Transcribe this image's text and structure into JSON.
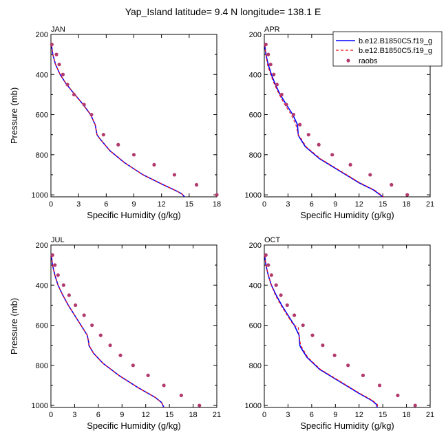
{
  "title": "Yap_Island  latitude= 9.4 N longitude= 138.1 E",
  "colors": {
    "model1": "#0000ff",
    "model2": "#ee1111",
    "obs": "#b33a6e",
    "axis": "#000000"
  },
  "legend": {
    "items": [
      {
        "label": "b.e12.B1850C5.f19_g",
        "style": "solid",
        "color": "#0000ff"
      },
      {
        "label": "b.e12.B1850C5.f19_g",
        "style": "dashed",
        "color": "#ee1111"
      },
      {
        "label": "raobs",
        "style": "marker",
        "color": "#b33a6e"
      }
    ]
  },
  "chart_data": [
    {
      "type": "line",
      "panel": "JAN",
      "xlabel": "Specific Humidity (g/kg)",
      "ylabel": "Pressure (mb)",
      "xlim": [
        0,
        18
      ],
      "ylim": [
        1010,
        200
      ],
      "xticks": [
        0,
        3,
        6,
        9,
        12,
        15,
        18
      ],
      "yticks": [
        200,
        400,
        600,
        800,
        1000
      ],
      "series": [
        {
          "name": "b.e12.B1850C5.f19_g",
          "style": "solid",
          "x": [
            0.05,
            0.2,
            0.5,
            1.0,
            1.7,
            2.6,
            3.5,
            4.3,
            4.8,
            5.0,
            5.3,
            6.4,
            8.0,
            10.0,
            12.2,
            13.6,
            14.2,
            14.5
          ],
          "y": [
            250,
            300,
            350,
            400,
            450,
            500,
            550,
            600,
            650,
            700,
            720,
            780,
            840,
            900,
            950,
            980,
            995,
            1010
          ]
        },
        {
          "name": "b.e12.B1850C5.f19_g",
          "style": "dashed",
          "x": [
            0.05,
            0.2,
            0.5,
            1.0,
            1.7,
            2.6,
            3.5,
            4.3,
            4.8,
            5.0,
            5.3,
            6.4,
            8.0,
            10.0,
            12.2,
            13.6,
            14.2,
            14.5
          ],
          "y": [
            250,
            300,
            350,
            400,
            450,
            500,
            550,
            600,
            650,
            700,
            720,
            780,
            840,
            900,
            950,
            980,
            995,
            1010
          ]
        },
        {
          "name": "raobs",
          "style": "marker",
          "x": [
            0.1,
            0.6,
            0.9,
            1.3,
            1.8,
            2.5,
            3.6,
            4.4,
            5.7,
            7.3,
            9.0,
            11.2,
            13.4,
            15.8,
            18.0
          ],
          "y": [
            250,
            300,
            350,
            400,
            450,
            500,
            550,
            600,
            700,
            750,
            800,
            850,
            900,
            950,
            1000
          ]
        }
      ]
    },
    {
      "type": "line",
      "panel": "APR",
      "xlabel": "Specific Humidity (g/kg)",
      "ylabel": "Pressure (mb)",
      "xlim": [
        0,
        21
      ],
      "ylim": [
        1010,
        200
      ],
      "xticks": [
        0,
        3,
        6,
        9,
        12,
        15,
        18,
        21
      ],
      "yticks": [
        200,
        400,
        600,
        800,
        1000
      ],
      "series": [
        {
          "name": "b.e12.B1850C5.f19_g",
          "style": "solid",
          "x": [
            0.05,
            0.2,
            0.5,
            0.9,
            1.4,
            2.0,
            2.8,
            3.6,
            4.2,
            4.3,
            4.4,
            5.2,
            7.0,
            9.5,
            12.0,
            13.8,
            14.5,
            15.0
          ],
          "y": [
            250,
            300,
            350,
            400,
            450,
            500,
            550,
            600,
            650,
            700,
            710,
            760,
            820,
            880,
            940,
            975,
            995,
            1010
          ]
        },
        {
          "name": "b.e12.B1850C5.f19_g",
          "style": "dashed",
          "x": [
            0.05,
            0.2,
            0.4,
            0.8,
            1.3,
            1.9,
            2.6,
            3.4,
            4.0,
            4.3,
            4.5,
            5.3,
            7.1,
            9.6,
            12.1,
            13.9,
            14.6,
            15.1
          ],
          "y": [
            250,
            300,
            350,
            400,
            450,
            500,
            550,
            600,
            650,
            700,
            710,
            760,
            820,
            880,
            940,
            975,
            995,
            1010
          ]
        },
        {
          "name": "raobs",
          "style": "marker",
          "x": [
            0.2,
            0.5,
            0.8,
            1.2,
            1.6,
            2.2,
            2.8,
            3.7,
            4.5,
            5.6,
            6.9,
            8.6,
            10.9,
            13.4,
            16.1,
            18.1
          ],
          "y": [
            250,
            300,
            350,
            400,
            450,
            500,
            550,
            600,
            650,
            700,
            750,
            800,
            850,
            900,
            950,
            1000
          ]
        }
      ]
    },
    {
      "type": "line",
      "panel": "JUL",
      "xlabel": "Specific Humidity (g/kg)",
      "ylabel": "Pressure (mb)",
      "xlim": [
        0,
        21
      ],
      "ylim": [
        1010,
        200
      ],
      "xticks": [
        0,
        3,
        6,
        9,
        12,
        15,
        18,
        21
      ],
      "yticks": [
        200,
        400,
        600,
        800,
        1000
      ],
      "series": [
        {
          "name": "b.e12.B1850C5.f19_g",
          "style": "solid",
          "x": [
            0.05,
            0.2,
            0.5,
            0.9,
            1.5,
            2.2,
            3.0,
            3.8,
            4.6,
            4.8,
            4.8,
            5.4,
            6.6,
            8.6,
            11.0,
            13.2,
            14.0,
            14.3
          ],
          "y": [
            250,
            300,
            350,
            400,
            450,
            500,
            550,
            600,
            650,
            690,
            700,
            740,
            790,
            850,
            910,
            960,
            985,
            1010
          ]
        },
        {
          "name": "b.e12.B1850C5.f19_g",
          "style": "dashed",
          "x": [
            0.05,
            0.2,
            0.5,
            0.9,
            1.5,
            2.2,
            3.0,
            3.8,
            4.6,
            4.8,
            4.8,
            5.4,
            6.6,
            8.6,
            11.0,
            13.2,
            14.0,
            14.3
          ],
          "y": [
            250,
            300,
            350,
            400,
            450,
            500,
            550,
            600,
            650,
            690,
            700,
            740,
            790,
            850,
            910,
            960,
            985,
            1010
          ]
        },
        {
          "name": "raobs",
          "style": "marker",
          "x": [
            0.2,
            0.5,
            0.9,
            1.6,
            2.3,
            3.1,
            4.2,
            5.2,
            6.3,
            7.5,
            8.8,
            10.4,
            12.3,
            14.3,
            16.5,
            18.8
          ],
          "y": [
            250,
            300,
            350,
            400,
            450,
            500,
            550,
            600,
            650,
            700,
            750,
            800,
            850,
            900,
            950,
            1000
          ]
        }
      ]
    },
    {
      "type": "line",
      "panel": "OCT",
      "xlabel": "Specific Humidity (g/kg)",
      "ylabel": "Pressure (mb)",
      "xlim": [
        0,
        21
      ],
      "ylim": [
        1010,
        200
      ],
      "xticks": [
        0,
        3,
        6,
        9,
        12,
        15,
        18,
        21
      ],
      "yticks": [
        200,
        400,
        600,
        800,
        1000
      ],
      "series": [
        {
          "name": "b.e12.B1850C5.f19_g",
          "style": "solid",
          "x": [
            0.05,
            0.2,
            0.5,
            0.9,
            1.5,
            2.2,
            3.0,
            3.8,
            4.4,
            4.5,
            4.6,
            5.4,
            7.0,
            9.5,
            12.0,
            13.6,
            14.2,
            14.3
          ],
          "y": [
            250,
            300,
            350,
            400,
            450,
            500,
            550,
            600,
            650,
            700,
            710,
            760,
            820,
            880,
            940,
            975,
            995,
            1010
          ]
        },
        {
          "name": "b.e12.B1850C5.f19_g",
          "style": "dashed",
          "x": [
            0.05,
            0.2,
            0.5,
            0.9,
            1.4,
            2.1,
            2.9,
            3.7,
            4.3,
            4.4,
            4.6,
            5.5,
            7.1,
            9.6,
            12.1,
            13.7,
            14.3,
            14.4
          ],
          "y": [
            250,
            300,
            350,
            400,
            450,
            500,
            550,
            600,
            610,
            650,
            700,
            760,
            820,
            880,
            940,
            975,
            995,
            1010
          ]
        },
        {
          "name": "raobs",
          "style": "marker",
          "x": [
            0.2,
            0.5,
            0.9,
            1.5,
            2.1,
            2.9,
            3.8,
            4.9,
            6.1,
            7.4,
            8.9,
            10.6,
            12.5,
            14.6,
            16.9,
            19.1
          ],
          "y": [
            250,
            300,
            350,
            400,
            450,
            500,
            550,
            600,
            650,
            700,
            750,
            800,
            850,
            900,
            950,
            1000
          ]
        }
      ]
    }
  ]
}
